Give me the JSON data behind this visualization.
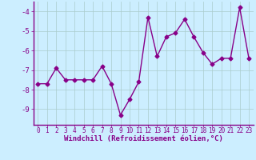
{
  "x": [
    0,
    1,
    2,
    3,
    4,
    5,
    6,
    7,
    8,
    9,
    10,
    11,
    12,
    13,
    14,
    15,
    16,
    17,
    18,
    19,
    20,
    21,
    22,
    23
  ],
  "y": [
    -7.7,
    -7.7,
    -6.9,
    -7.5,
    -7.5,
    -7.5,
    -7.5,
    -6.8,
    -7.7,
    -9.3,
    -8.5,
    -7.6,
    -4.3,
    -6.3,
    -5.3,
    -5.1,
    -4.4,
    -5.3,
    -6.1,
    -6.7,
    -6.4,
    -6.4,
    -3.8,
    -6.4
  ],
  "line_color": "#880088",
  "marker": "D",
  "marker_size": 2.5,
  "bg_color": "#cceeff",
  "grid_color": "#aacccc",
  "xlabel": "Windchill (Refroidissement éolien,°C)",
  "xlabel_color": "#880088",
  "tick_color": "#880088",
  "ylim": [
    -9.8,
    -3.5
  ],
  "xlim": [
    -0.5,
    23.5
  ],
  "yticks": [
    -9,
    -8,
    -7,
    -6,
    -5,
    -4
  ],
  "xtick_labels": [
    "0",
    "1",
    "2",
    "3",
    "4",
    "5",
    "6",
    "7",
    "8",
    "9",
    "10",
    "11",
    "12",
    "13",
    "14",
    "15",
    "16",
    "17",
    "18",
    "19",
    "20",
    "21",
    "22",
    "23"
  ],
  "spine_color": "#880088",
  "line_width": 1.0,
  "xtick_fontsize": 5.5,
  "ytick_fontsize": 6.5,
  "xlabel_fontsize": 6.5
}
